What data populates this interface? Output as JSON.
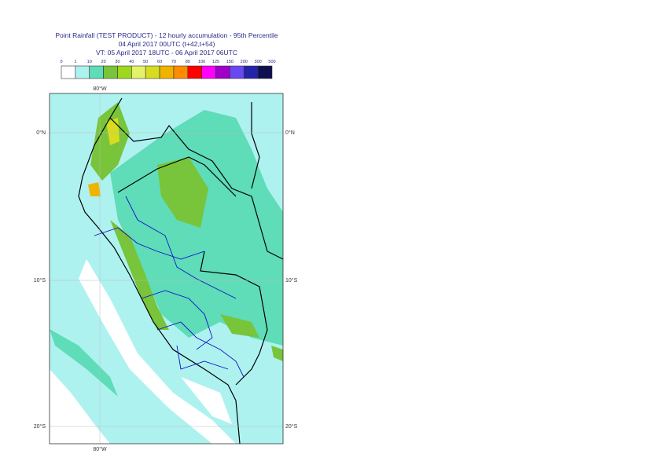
{
  "header": {
    "title": "Point Rainfall (TEST PRODUCT) - 12 hourly accumulation - 95th Percentile",
    "line2": "04 April 2017 00UTC (t+42,t+54)",
    "line3": "VT: 05 April 2017 18UTC - 06 April 2017 06UTC"
  },
  "legend": {
    "labels": [
      0,
      1,
      10,
      20,
      30,
      40,
      50,
      60,
      70,
      80,
      100,
      125,
      150,
      200,
      300,
      500
    ],
    "colors": [
      "#ffffff",
      "#aef2f0",
      "#5fdcb8",
      "#78c43a",
      "#9ed81e",
      "#e4f26a",
      "#d8dc20",
      "#f0b400",
      "#ff8c00",
      "#ff0000",
      "#ff00ff",
      "#a000c8",
      "#6a48f0",
      "#2424a8",
      "#0e0e50"
    ]
  },
  "axes": {
    "top": "80°W",
    "bottom": "80°W",
    "left": [
      "0°N",
      "10°S",
      "20°S"
    ],
    "right": [
      "0°N",
      "10°S",
      "20°S"
    ]
  }
}
